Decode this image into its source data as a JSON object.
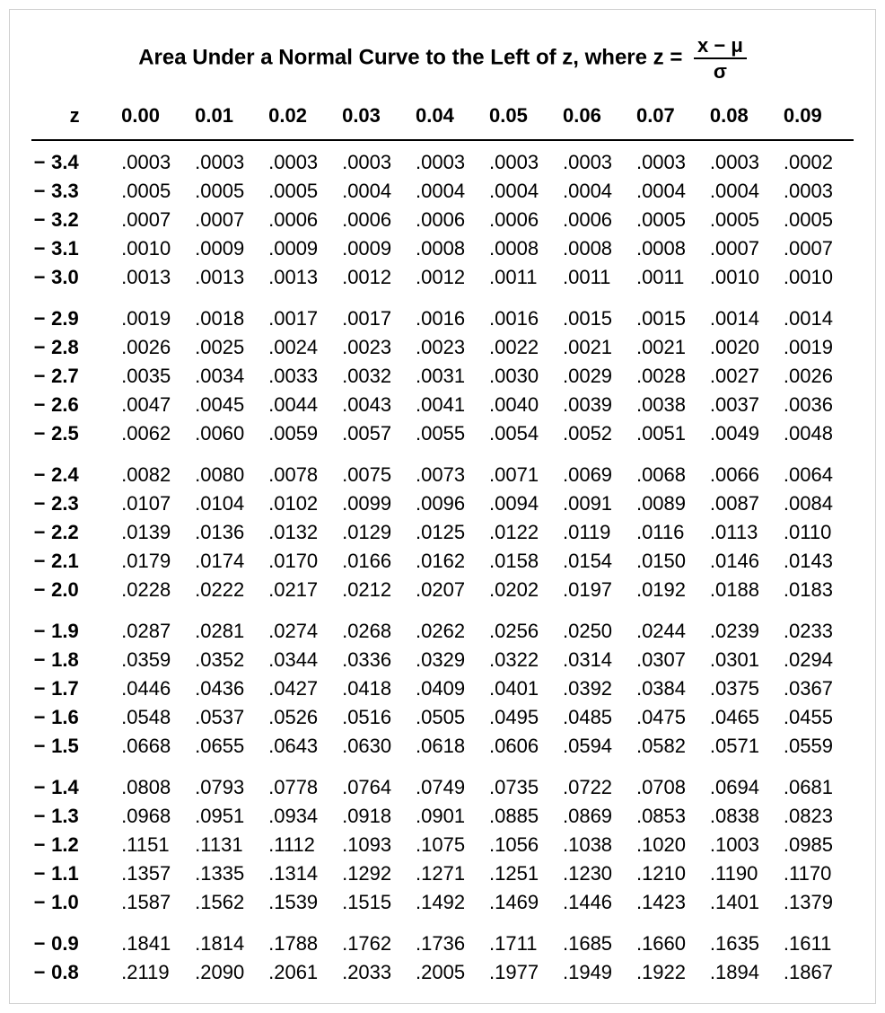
{
  "title_prefix": "Area Under a Normal Curve to the Left of z, where z =",
  "formula_numerator": "x − μ",
  "formula_denominator": "σ",
  "columns": [
    "z",
    "0.00",
    "0.01",
    "0.02",
    "0.03",
    "0.04",
    "0.05",
    "0.06",
    "0.07",
    "0.08",
    "0.09"
  ],
  "row_group_size": 5,
  "colors": {
    "text": "#000000",
    "background": "#ffffff",
    "rule": "#000000",
    "border": "#d0d0d0"
  },
  "font": {
    "family": "Arial",
    "title_size_pt": 18,
    "body_size_pt": 16,
    "weight_header": "bold",
    "weight_body": "normal"
  },
  "rows": [
    {
      "z": "3.4",
      "v": [
        ".0003",
        ".0003",
        ".0003",
        ".0003",
        ".0003",
        ".0003",
        ".0003",
        ".0003",
        ".0003",
        ".0002"
      ]
    },
    {
      "z": "3.3",
      "v": [
        ".0005",
        ".0005",
        ".0005",
        ".0004",
        ".0004",
        ".0004",
        ".0004",
        ".0004",
        ".0004",
        ".0003"
      ]
    },
    {
      "z": "3.2",
      "v": [
        ".0007",
        ".0007",
        ".0006",
        ".0006",
        ".0006",
        ".0006",
        ".0006",
        ".0005",
        ".0005",
        ".0005"
      ]
    },
    {
      "z": "3.1",
      "v": [
        ".0010",
        ".0009",
        ".0009",
        ".0009",
        ".0008",
        ".0008",
        ".0008",
        ".0008",
        ".0007",
        ".0007"
      ]
    },
    {
      "z": "3.0",
      "v": [
        ".0013",
        ".0013",
        ".0013",
        ".0012",
        ".0012",
        ".0011",
        ".0011",
        ".0011",
        ".0010",
        ".0010"
      ]
    },
    {
      "z": "2.9",
      "v": [
        ".0019",
        ".0018",
        ".0017",
        ".0017",
        ".0016",
        ".0016",
        ".0015",
        ".0015",
        ".0014",
        ".0014"
      ]
    },
    {
      "z": "2.8",
      "v": [
        ".0026",
        ".0025",
        ".0024",
        ".0023",
        ".0023",
        ".0022",
        ".0021",
        ".0021",
        ".0020",
        ".0019"
      ]
    },
    {
      "z": "2.7",
      "v": [
        ".0035",
        ".0034",
        ".0033",
        ".0032",
        ".0031",
        ".0030",
        ".0029",
        ".0028",
        ".0027",
        ".0026"
      ]
    },
    {
      "z": "2.6",
      "v": [
        ".0047",
        ".0045",
        ".0044",
        ".0043",
        ".0041",
        ".0040",
        ".0039",
        ".0038",
        ".0037",
        ".0036"
      ]
    },
    {
      "z": "2.5",
      "v": [
        ".0062",
        ".0060",
        ".0059",
        ".0057",
        ".0055",
        ".0054",
        ".0052",
        ".0051",
        ".0049",
        ".0048"
      ]
    },
    {
      "z": "2.4",
      "v": [
        ".0082",
        ".0080",
        ".0078",
        ".0075",
        ".0073",
        ".0071",
        ".0069",
        ".0068",
        ".0066",
        ".0064"
      ]
    },
    {
      "z": "2.3",
      "v": [
        ".0107",
        ".0104",
        ".0102",
        ".0099",
        ".0096",
        ".0094",
        ".0091",
        ".0089",
        ".0087",
        ".0084"
      ]
    },
    {
      "z": "2.2",
      "v": [
        ".0139",
        ".0136",
        ".0132",
        ".0129",
        ".0125",
        ".0122",
        ".0119",
        ".0116",
        ".0113",
        ".0110"
      ]
    },
    {
      "z": "2.1",
      "v": [
        ".0179",
        ".0174",
        ".0170",
        ".0166",
        ".0162",
        ".0158",
        ".0154",
        ".0150",
        ".0146",
        ".0143"
      ]
    },
    {
      "z": "2.0",
      "v": [
        ".0228",
        ".0222",
        ".0217",
        ".0212",
        ".0207",
        ".0202",
        ".0197",
        ".0192",
        ".0188",
        ".0183"
      ]
    },
    {
      "z": "1.9",
      "v": [
        ".0287",
        ".0281",
        ".0274",
        ".0268",
        ".0262",
        ".0256",
        ".0250",
        ".0244",
        ".0239",
        ".0233"
      ]
    },
    {
      "z": "1.8",
      "v": [
        ".0359",
        ".0352",
        ".0344",
        ".0336",
        ".0329",
        ".0322",
        ".0314",
        ".0307",
        ".0301",
        ".0294"
      ]
    },
    {
      "z": "1.7",
      "v": [
        ".0446",
        ".0436",
        ".0427",
        ".0418",
        ".0409",
        ".0401",
        ".0392",
        ".0384",
        ".0375",
        ".0367"
      ]
    },
    {
      "z": "1.6",
      "v": [
        ".0548",
        ".0537",
        ".0526",
        ".0516",
        ".0505",
        ".0495",
        ".0485",
        ".0475",
        ".0465",
        ".0455"
      ]
    },
    {
      "z": "1.5",
      "v": [
        ".0668",
        ".0655",
        ".0643",
        ".0630",
        ".0618",
        ".0606",
        ".0594",
        ".0582",
        ".0571",
        ".0559"
      ]
    },
    {
      "z": "1.4",
      "v": [
        ".0808",
        ".0793",
        ".0778",
        ".0764",
        ".0749",
        ".0735",
        ".0722",
        ".0708",
        ".0694",
        ".0681"
      ]
    },
    {
      "z": "1.3",
      "v": [
        ".0968",
        ".0951",
        ".0934",
        ".0918",
        ".0901",
        ".0885",
        ".0869",
        ".0853",
        ".0838",
        ".0823"
      ]
    },
    {
      "z": "1.2",
      "v": [
        ".1151",
        ".1131",
        ".1112",
        ".1093",
        ".1075",
        ".1056",
        ".1038",
        ".1020",
        ".1003",
        ".0985"
      ]
    },
    {
      "z": "1.1",
      "v": [
        ".1357",
        ".1335",
        ".1314",
        ".1292",
        ".1271",
        ".1251",
        ".1230",
        ".1210",
        ".1190",
        ".1170"
      ]
    },
    {
      "z": "1.0",
      "v": [
        ".1587",
        ".1562",
        ".1539",
        ".1515",
        ".1492",
        ".1469",
        ".1446",
        ".1423",
        ".1401",
        ".1379"
      ]
    },
    {
      "z": "0.9",
      "v": [
        ".1841",
        ".1814",
        ".1788",
        ".1762",
        ".1736",
        ".1711",
        ".1685",
        ".1660",
        ".1635",
        ".1611"
      ]
    },
    {
      "z": "0.8",
      "v": [
        ".2119",
        ".2090",
        ".2061",
        ".2033",
        ".2005",
        ".1977",
        ".1949",
        ".1922",
        ".1894",
        ".1867"
      ]
    }
  ]
}
